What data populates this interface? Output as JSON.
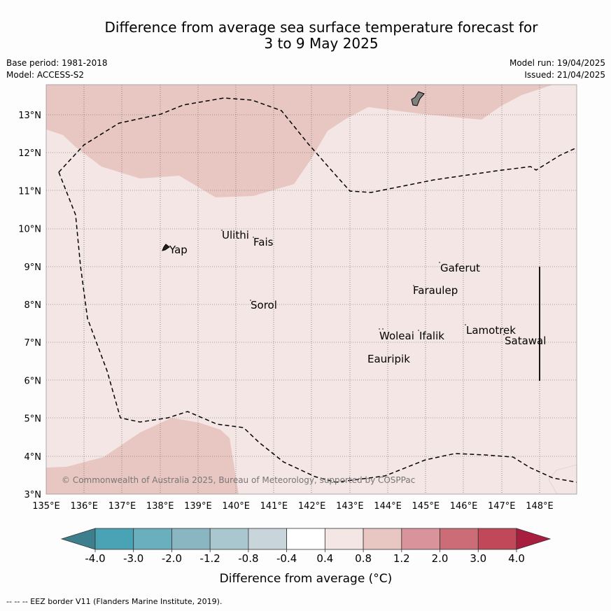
{
  "title_line1": "Difference from average sea surface temperature forecast for",
  "title_line2": "3 to 9 May 2025",
  "meta": {
    "base_period": "Base period: 1981-2018",
    "model": "Model: ACCESS-S2",
    "model_run": "Model run: 19/04/2025",
    "issued": "Issued: 21/04/2025"
  },
  "lat_labels": [
    "13°N",
    "12°N",
    "11°N",
    "10°N",
    "9°N",
    "8°N",
    "7°N",
    "6°N",
    "5°N",
    "4°N",
    "3°N"
  ],
  "lon_labels": [
    "135°E",
    "136°E",
    "137°E",
    "138°E",
    "139°E",
    "140°E",
    "141°E",
    "142°E",
    "143°E",
    "144°E",
    "145°E",
    "146°E",
    "147°E",
    "148°E"
  ],
  "places": {
    "yap": "Yap",
    "ulithi": "Ulithi",
    "fais": "Fais",
    "sorol": "Sorol",
    "gaferut": "Gaferut",
    "faraulep": "Faraulep",
    "woleai": "Woleai",
    "ifalik": "Ifalik",
    "lamotrek": "Lamotrek",
    "satawal": "Satawal",
    "eauripik": "Eauripik"
  },
  "copyright": "© Commonwealth of Australia 2025, Bureau of Meteorology, supported by COSPPac",
  "colorbar": {
    "ticks": [
      "-4.0",
      "-3.0",
      "-2.0",
      "-1.2",
      "-0.8",
      "-0.4",
      "0.4",
      "0.8",
      "1.2",
      "2.0",
      "3.0",
      "4.0"
    ],
    "colors": [
      "#3d7f8c",
      "#49a3b5",
      "#6aafbd",
      "#8ab6c2",
      "#a9c7cf",
      "#c8d6dc",
      "#ffffff",
      "#f4e6e4",
      "#e8c6c1",
      "#d8949a",
      "#cc6c77",
      "#c04858",
      "#a81e3e"
    ],
    "label": "Difference from average (°C)"
  },
  "footer": "--  --  -- EEZ border V11 (Flanders Marine Institute, 2019).",
  "map_colors": {
    "background": "#f4e6e4",
    "warm_region": "#e8c6c1",
    "land": "#808080"
  }
}
